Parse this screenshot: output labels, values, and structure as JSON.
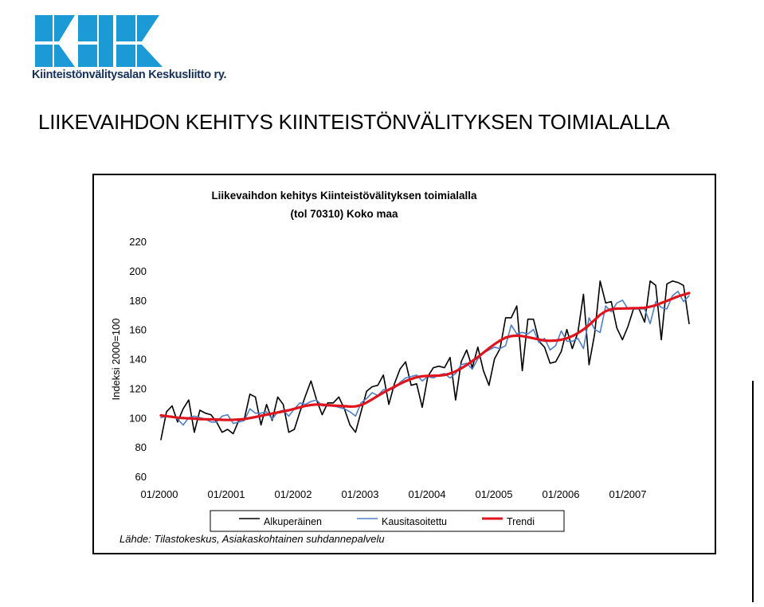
{
  "logo": {
    "org_name": "Kiinteistönvälitysalan Keskusliitto ry.",
    "color": "#1b9ad6"
  },
  "page": {
    "title": "LIIKEVAIHDON KEHITYS KIINTEISTÖNVÄLITYKSEN TOIMIALALLA"
  },
  "chart_data": {
    "type": "line",
    "title": "Liikevaihdon kehitys Kiinteistövälityksen toimialalla",
    "subtitle": "(tol 70310) Koko maa",
    "ylabel": "Indeksi 2000=100",
    "xlabel": "",
    "ylim": [
      60,
      220
    ],
    "yticks": [
      60,
      80,
      100,
      120,
      140,
      160,
      180,
      200,
      220
    ],
    "xticks": [
      "01/2000",
      "01/2001",
      "01/2002",
      "01/2003",
      "01/2004",
      "01/2005",
      "01/2006",
      "01/2007"
    ],
    "grid": false,
    "legend_position": "bottom",
    "source": "Lähde: Tilastokeskus, Asiakaskohtainen suhdannepalvelu",
    "series": [
      {
        "name": "Alkuperäinen",
        "color": "#000000",
        "values": [
          85,
          104,
          108,
          97,
          106,
          112,
          90,
          105,
          103,
          102,
          97,
          90,
          92,
          89,
          98,
          99,
          116,
          114,
          95,
          109,
          98,
          114,
          109,
          90,
          92,
          104,
          115,
          125,
          112,
          102,
          110,
          110,
          114,
          106,
          95,
          90,
          104,
          118,
          121,
          122,
          129,
          109,
          123,
          133,
          138,
          122,
          123,
          107,
          128,
          134,
          135,
          134,
          141,
          112,
          138,
          146,
          134,
          148,
          132,
          122,
          140,
          147,
          168,
          168,
          176,
          132,
          167,
          167,
          152,
          148,
          137,
          138,
          145,
          160,
          147,
          158,
          184,
          136,
          157,
          193,
          178,
          179,
          161,
          153,
          162,
          174,
          174,
          165,
          193,
          190,
          153,
          191,
          193,
          192,
          190,
          164
        ]
      },
      {
        "name": "Kausitasoitettu",
        "color": "#4f7ec7",
        "values": [
          100,
          101,
          101,
          99,
          95,
          100,
          101,
          100,
          99,
          97,
          97,
          101,
          102,
          96,
          97,
          98,
          106,
          103,
          103,
          104,
          99,
          104,
          105,
          101,
          106,
          110,
          109,
          111,
          112,
          108,
          108,
          108,
          107,
          106,
          104,
          101,
          110,
          113,
          117,
          115,
          119,
          119,
          120,
          124,
          127,
          128,
          129,
          125,
          128,
          127,
          129,
          130,
          127,
          130,
          136,
          137,
          133,
          140,
          144,
          146,
          148,
          147,
          149,
          163,
          157,
          158,
          157,
          160,
          151,
          154,
          146,
          149,
          159,
          152,
          152,
          154,
          147,
          168,
          160,
          158,
          176,
          172,
          178,
          180,
          174,
          174,
          174,
          174,
          164,
          179,
          175,
          174,
          183,
          186,
          179,
          183
        ]
      },
      {
        "name": "Trendi",
        "color": "#e0141c",
        "values": [
          101.5,
          101,
          100.5,
          100,
          99.7,
          99.5,
          99.3,
          99,
          98.9,
          98.8,
          98.7,
          98.5,
          98.4,
          98.5,
          98.7,
          99,
          99.7,
          100.4,
          101.2,
          102,
          102.8,
          103.5,
          104.2,
          105,
          106,
          107,
          108,
          108.6,
          108.9,
          108.8,
          108.5,
          108.2,
          108,
          107.8,
          107.5,
          107.6,
          108.5,
          110.3,
          112.5,
          114.8,
          117,
          119,
          121,
          123,
          124.8,
          126.3,
          127.5,
          128.2,
          128.4,
          128.5,
          128.6,
          129,
          130,
          131.5,
          133.5,
          135.8,
          138.5,
          141.2,
          144.2,
          147.2,
          150,
          152.5,
          154.5,
          155.5,
          155.8,
          155.5,
          154.8,
          154,
          153.2,
          152.5,
          152.3,
          152.5,
          153,
          154,
          155.5,
          157.5,
          160,
          163,
          166.5,
          170,
          172.5,
          173.8,
          174.2,
          174.3,
          174.4,
          174.5,
          174.6,
          174.8,
          175.5,
          176.5,
          178,
          179.5,
          181,
          182.5,
          183.7,
          184.8
        ]
      }
    ]
  }
}
